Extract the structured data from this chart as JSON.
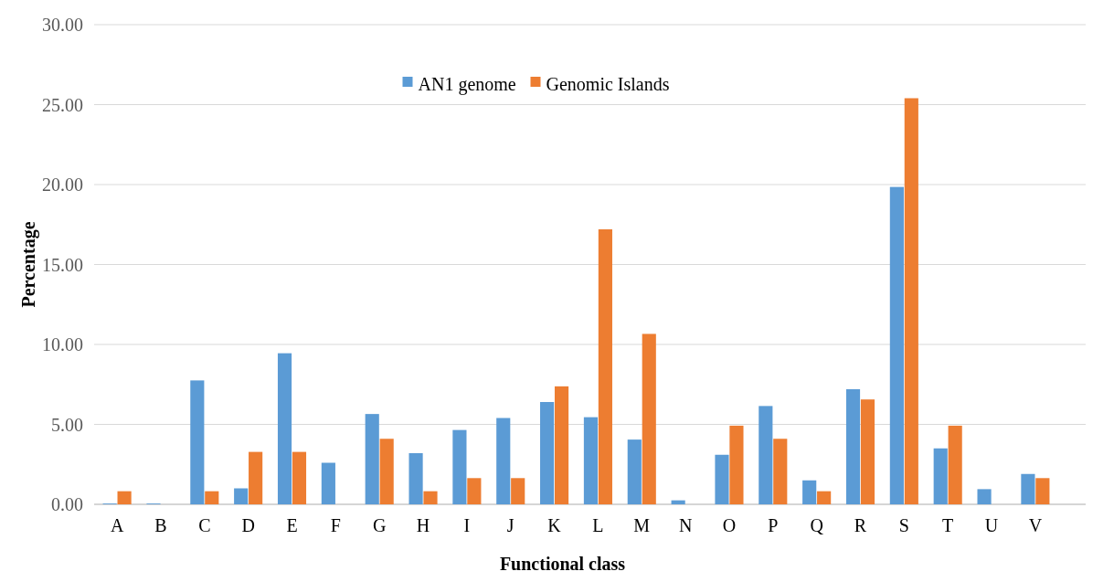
{
  "chart_data": {
    "type": "bar",
    "xlabel": "Functional class",
    "ylabel": "Percentage",
    "categories": [
      "A",
      "B",
      "C",
      "D",
      "E",
      "F",
      "G",
      "H",
      "I",
      "J",
      "K",
      "L",
      "M",
      "N",
      "O",
      "P",
      "Q",
      "R",
      "S",
      "T",
      "U",
      "V"
    ],
    "series": [
      {
        "name": "AN1 genome",
        "color": "#5b9bd5",
        "values": [
          0.05,
          0.05,
          7.75,
          1.0,
          9.45,
          2.6,
          5.65,
          3.2,
          4.65,
          5.4,
          6.4,
          5.45,
          4.05,
          0.25,
          3.1,
          6.15,
          1.5,
          7.2,
          19.85,
          3.5,
          0.95,
          1.9
        ]
      },
      {
        "name": "Genomic Islands",
        "color": "#ed7d31",
        "values": [
          0.82,
          0,
          0.82,
          3.28,
          3.28,
          0,
          4.1,
          0.82,
          1.64,
          1.64,
          7.38,
          17.2,
          10.66,
          0,
          4.92,
          4.1,
          0.82,
          6.56,
          25.4,
          4.92,
          0,
          1.64
        ]
      }
    ],
    "ylim": [
      0,
      30
    ],
    "yticks": [
      {
        "value": 0,
        "label": "0.00"
      },
      {
        "value": 5,
        "label": "5.00"
      },
      {
        "value": 10,
        "label": "10.00"
      },
      {
        "value": 15,
        "label": "15.00"
      },
      {
        "value": 20,
        "label": "20.00"
      },
      {
        "value": 25,
        "label": "25.00"
      },
      {
        "value": 30,
        "label": "30.00"
      }
    ],
    "grid": "y",
    "legend": "top"
  }
}
